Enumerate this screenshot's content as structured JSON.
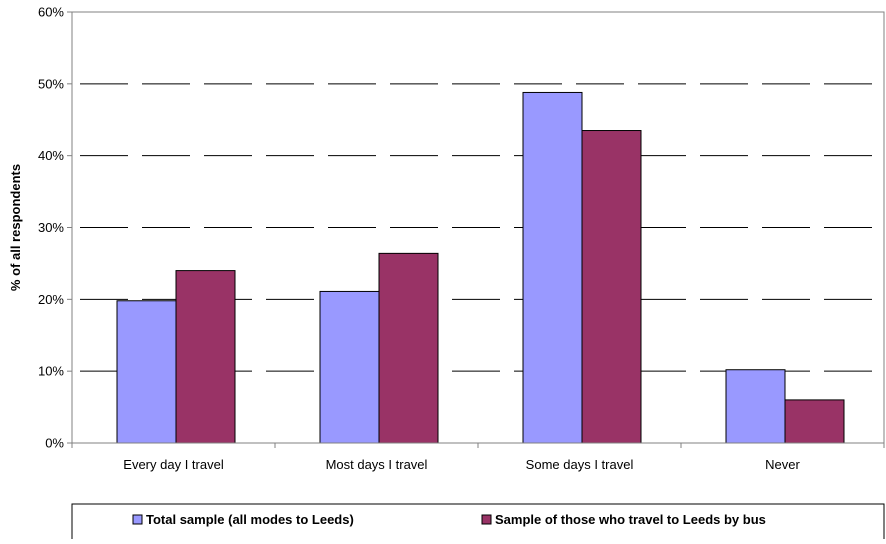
{
  "chart_data": {
    "type": "bar",
    "title": "",
    "xlabel": "",
    "ylabel": "% of all respondents",
    "ylim": [
      0,
      60
    ],
    "y_ticks": [
      "0%",
      "10%",
      "20%",
      "30%",
      "40%",
      "50%",
      "60%"
    ],
    "y_tick_values": [
      0,
      10,
      20,
      30,
      40,
      50,
      60
    ],
    "grid": "horizontal dashed",
    "legend_position": "bottom",
    "categories": [
      "Every day I travel",
      "Most days I travel",
      "Some days I travel",
      "Never"
    ],
    "series": [
      {
        "name": "Total sample (all modes to Leeds)",
        "color": "#9999ff",
        "values": [
          19.8,
          21.1,
          48.8,
          10.2
        ]
      },
      {
        "name": "Sample of those who travel to Leeds by bus",
        "color": "#993366",
        "values": [
          24.0,
          26.4,
          43.5,
          6.0
        ]
      }
    ]
  }
}
